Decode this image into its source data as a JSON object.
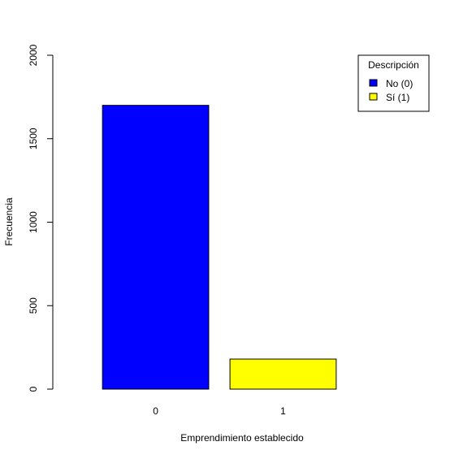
{
  "chart_data": {
    "type": "bar",
    "categories": [
      "0",
      "1"
    ],
    "values": [
      1700,
      180
    ],
    "colors": [
      "#0000ff",
      "#ffff00"
    ],
    "title": "",
    "xlabel": "Emprendimiento establecido",
    "ylabel": "Frecuencia",
    "ylim": [
      0,
      2000
    ],
    "yticks": [
      0,
      500,
      1000,
      1500,
      2000
    ],
    "legend": {
      "title": "Descripción",
      "placement": "top-right",
      "entries": [
        {
          "label": "No (0)",
          "color": "#0000ff"
        },
        {
          "label": "Sí (1)",
          "color": "#ffff00"
        }
      ]
    }
  }
}
